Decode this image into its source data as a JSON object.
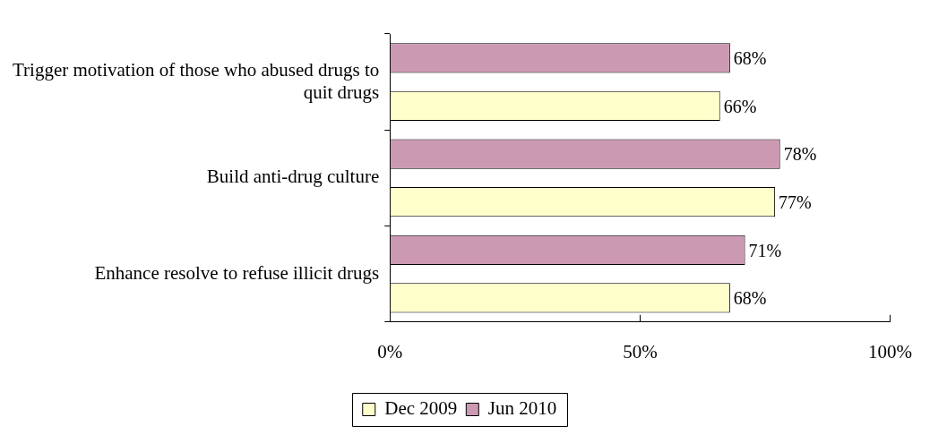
{
  "chart_data": {
    "type": "bar",
    "orientation": "horizontal",
    "categories": [
      "Trigger motivation of those who abused drugs to quit drugs",
      "Build anti-drug culture",
      "Enhance resolve to refuse illicit drugs"
    ],
    "series": [
      {
        "name": "Dec 2009",
        "color": "#ffffcc",
        "values": [
          66,
          77,
          68
        ],
        "value_labels": [
          "66%",
          "77%",
          "68%"
        ]
      },
      {
        "name": "Jun 2010",
        "color": "#cc99b3",
        "values": [
          68,
          78,
          71
        ],
        "value_labels": [
          "68%",
          "78%",
          "71%"
        ]
      }
    ],
    "xlim": [
      0,
      100
    ],
    "xticks": [
      {
        "value": 0,
        "label": "0%"
      },
      {
        "value": 50,
        "label": "50%"
      },
      {
        "value": 100,
        "label": "100%"
      }
    ],
    "grid": false,
    "legend": "bottom"
  }
}
